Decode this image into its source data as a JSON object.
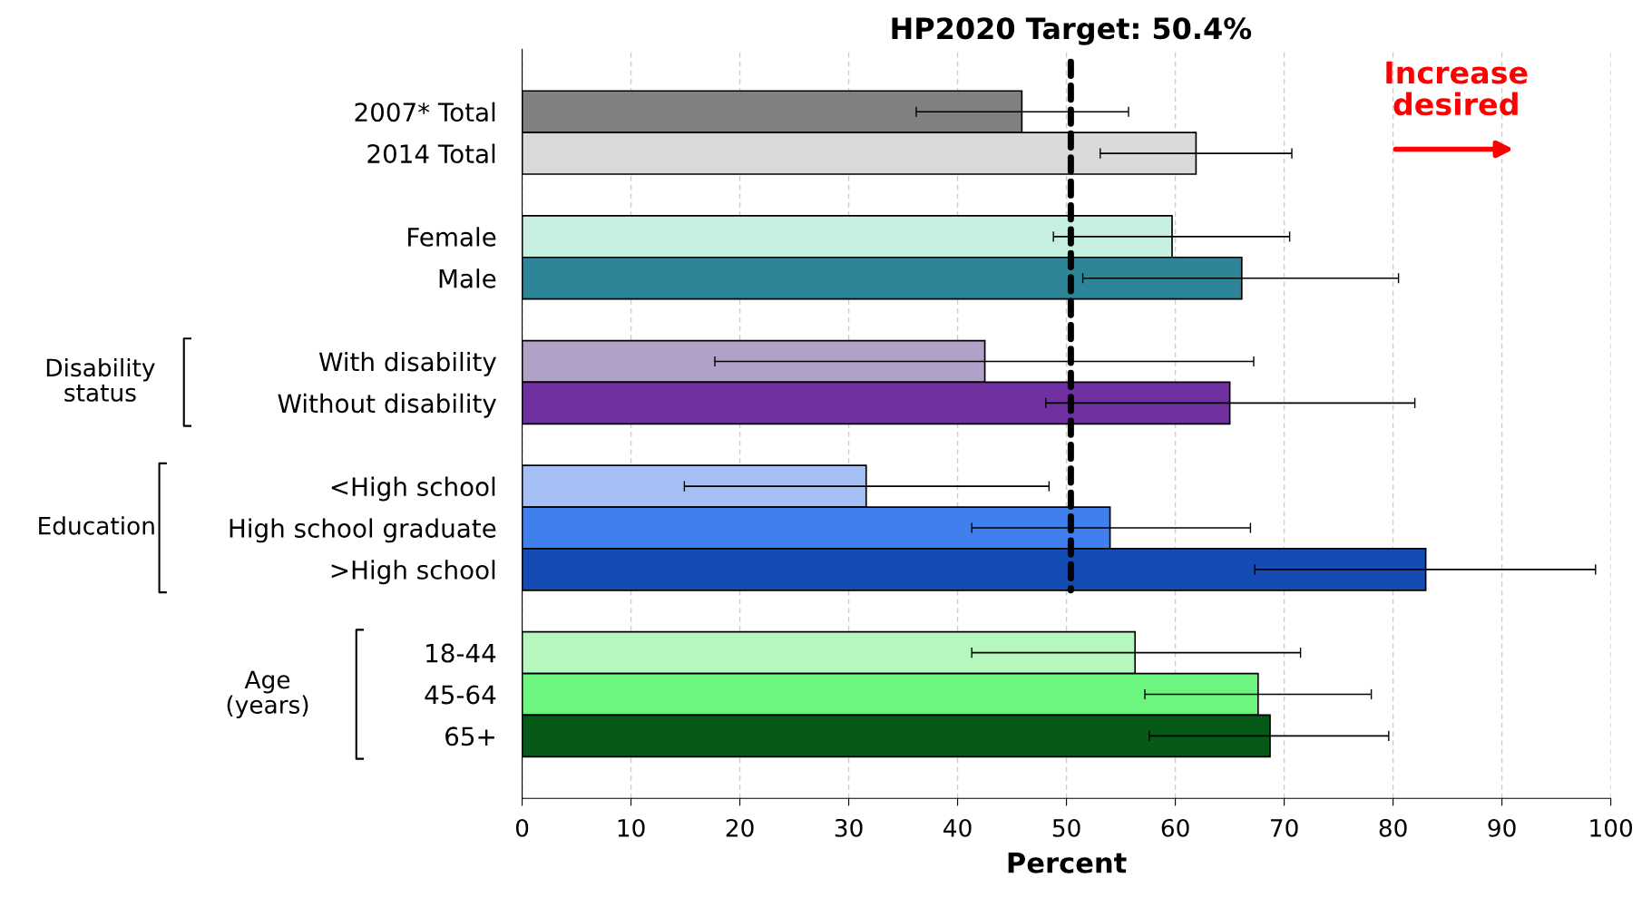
{
  "chart_data": {
    "type": "bar",
    "orientation": "horizontal",
    "xlabel": "Percent",
    "categories": [
      "2007* Total",
      "2014 Total",
      null,
      "Female",
      "Male",
      null,
      "With disability",
      "Without disability",
      null,
      "<High school",
      "High school graduate",
      ">High school",
      null,
      "18-44",
      "45-64",
      "65+"
    ],
    "values": [
      45.9,
      61.9,
      null,
      59.7,
      66.1,
      null,
      42.5,
      65.0,
      null,
      31.6,
      54.0,
      83.0,
      null,
      56.3,
      67.6,
      68.7
    ],
    "errors": [
      [
        36.2,
        55.7
      ],
      [
        53.1,
        70.7
      ],
      null,
      [
        48.8,
        70.5
      ],
      [
        51.5,
        80.5
      ],
      null,
      [
        17.7,
        67.2
      ],
      [
        48.1,
        82.0
      ],
      null,
      [
        14.9,
        48.4
      ],
      [
        41.3,
        66.9
      ],
      [
        67.3,
        98.6
      ],
      null,
      [
        41.3,
        71.5
      ],
      [
        57.2,
        78.0
      ],
      [
        57.6,
        79.6
      ]
    ],
    "colors": [
      "#808080",
      "#d9d9d9",
      "#ffffff",
      "#c6efdf",
      "#2e8597",
      "#ffffff",
      "#b1a0c7",
      "#7030a0",
      "#ffffff",
      "#a3bff5",
      "#4080ec",
      "#154cb3",
      "#ffffff",
      "#b6f7be",
      "#6cf57f",
      "#045a16"
    ],
    "xlim": [
      0,
      100
    ],
    "xticks": [
      0,
      10,
      20,
      30,
      40,
      50,
      60,
      70,
      80,
      90,
      100
    ],
    "grid": "x",
    "ref_lines": [
      {
        "axis": "x",
        "value": 50.4,
        "label": "HP2020 Target: 50.4%",
        "color": "#000000",
        "line_style": "dashed"
      }
    ],
    "annotations": [
      "Increase desired",
      "Disability status",
      "Education",
      "Age (years)"
    ]
  }
}
